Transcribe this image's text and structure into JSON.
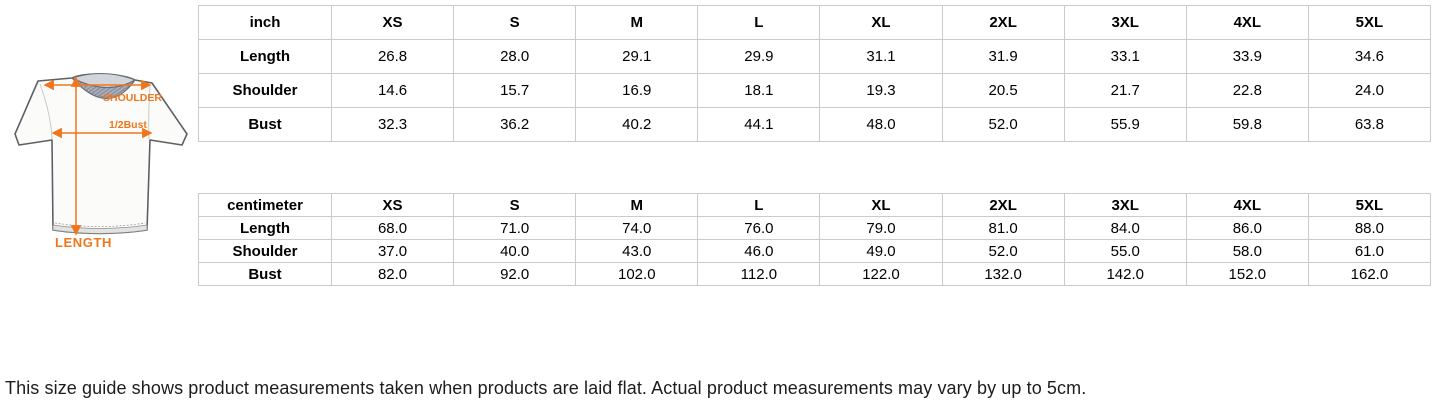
{
  "size_guide": {
    "columns": [
      "XS",
      "S",
      "M",
      "L",
      "XL",
      "2XL",
      "3XL",
      "4XL",
      "5XL"
    ],
    "tables": [
      {
        "unit_label": "inch",
        "rows": [
          {
            "label": "Length",
            "values": [
              "26.8",
              "28.0",
              "29.1",
              "29.9",
              "31.1",
              "31.9",
              "33.1",
              "33.9",
              "34.6"
            ]
          },
          {
            "label": "Shoulder",
            "values": [
              "14.6",
              "15.7",
              "16.9",
              "18.1",
              "19.3",
              "20.5",
              "21.7",
              "22.8",
              "24.0"
            ]
          },
          {
            "label": "Bust",
            "values": [
              "32.3",
              "36.2",
              "40.2",
              "44.1",
              "48.0",
              "52.0",
              "55.9",
              "59.8",
              "63.8"
            ]
          }
        ]
      },
      {
        "unit_label": "centimeter",
        "rows": [
          {
            "label": "Length",
            "values": [
              "68.0",
              "71.0",
              "74.0",
              "76.0",
              "79.0",
              "81.0",
              "84.0",
              "86.0",
              "88.0"
            ]
          },
          {
            "label": "Shoulder",
            "values": [
              "37.0",
              "40.0",
              "43.0",
              "46.0",
              "49.0",
              "52.0",
              "55.0",
              "58.0",
              "61.0"
            ]
          },
          {
            "label": "Bust",
            "values": [
              "82.0",
              "92.0",
              "102.0",
              "112.0",
              "122.0",
              "132.0",
              "142.0",
              "152.0",
              "162.0"
            ]
          }
        ]
      }
    ]
  },
  "diagram": {
    "labels": {
      "shoulder": "SHOULDER",
      "half_bust": "1/2Bust",
      "length": "LENGTH"
    },
    "accent_color": "#f0761e"
  },
  "note": "This size guide shows product measurements taken when products are laid flat. Actual product measurements may vary by up to 5cm."
}
